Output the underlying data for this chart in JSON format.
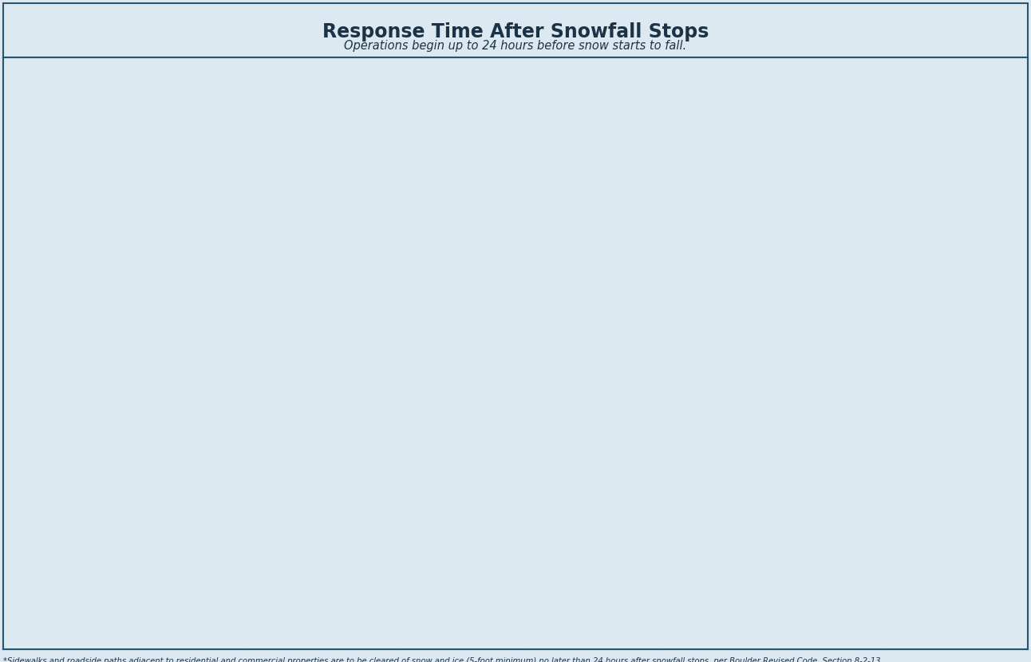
{
  "title": "Response Time After Snowfall Stops",
  "subtitle": "Operations begin up to 24 hours before snow starts to fall.",
  "bg_color": "#dce9f0",
  "header_dark": "#1c3347",
  "col_header_bg": "#3d718f",
  "cell_light": "#dce9f0",
  "white": "#ffffff",
  "border_color": "#2a5570",
  "text_dark": "#1c3347",
  "text_teal": "#3d718f",
  "text_light_blue": "#7ab3cc",
  "text_gray": "#aaaaaa",
  "footnote": "*Sidewalks and roadside paths adjacent to residential and commercial properties are to be cleared of snow and ice (5-foot minimum) no later than 24 hours after snowfall stops, per Boulder Revised Code, Section 8-2-13."
}
